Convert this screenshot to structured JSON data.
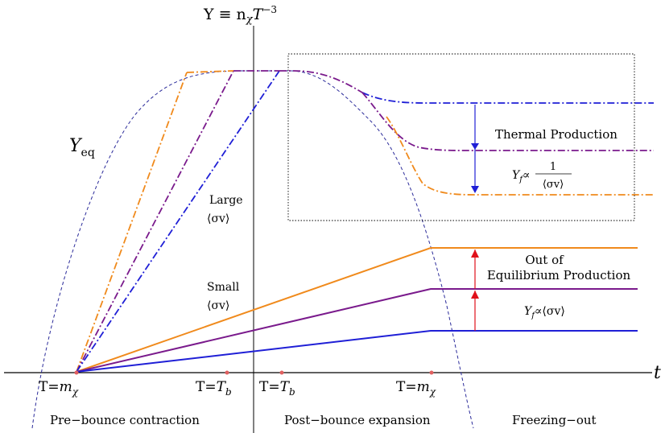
{
  "axes": {
    "y_label_main": "Y ≡ n",
    "y_label_sub": "χ",
    "y_label_T": "T",
    "y_label_exp": "−3",
    "x_label": "t"
  },
  "curves": {
    "equilibrium_label": "Y",
    "equilibrium_label_sub": "eq"
  },
  "labels": {
    "large_1": "Large",
    "large_2": "⟨σv⟩",
    "small_1": "Small",
    "small_2": "⟨σv⟩",
    "thermal": "Thermal Production",
    "thermal_formula_Y": "Y",
    "thermal_formula_sub": "f",
    "thermal_formula_prop": "∝",
    "thermal_formula_num": "1",
    "thermal_formula_den": "⟨σv⟩",
    "ooe_1": "Out of",
    "ooe_2": "Equilibrium Production",
    "ooe_formula_Y": "Y",
    "ooe_formula_sub": "f",
    "ooe_formula_rest": "∝⟨σv⟩"
  },
  "ticks": {
    "t1_prefix": "T=",
    "t1_sym": "m",
    "t1_sub": "χ",
    "t2_prefix": "T=",
    "t2_sym": "T",
    "t2_sub": "b",
    "t3_prefix": "T=",
    "t3_sym": "T",
    "t3_sub": "b",
    "t4_prefix": "T=",
    "t4_sym": "m",
    "t4_sub": "χ"
  },
  "phases": {
    "pre": "Pre−bounce contraction",
    "post": "Post−bounce expansion",
    "freeze": "Freezing−out"
  },
  "colors": {
    "blue": "#1f1fd6",
    "purple": "#7a1a8c",
    "orange": "#f08a1c",
    "equilibrium": "#2b2b9a",
    "arrow_blue": "#1f1fd6",
    "arrow_red": "#e0101a",
    "tick_dot": "#e06060"
  }
}
